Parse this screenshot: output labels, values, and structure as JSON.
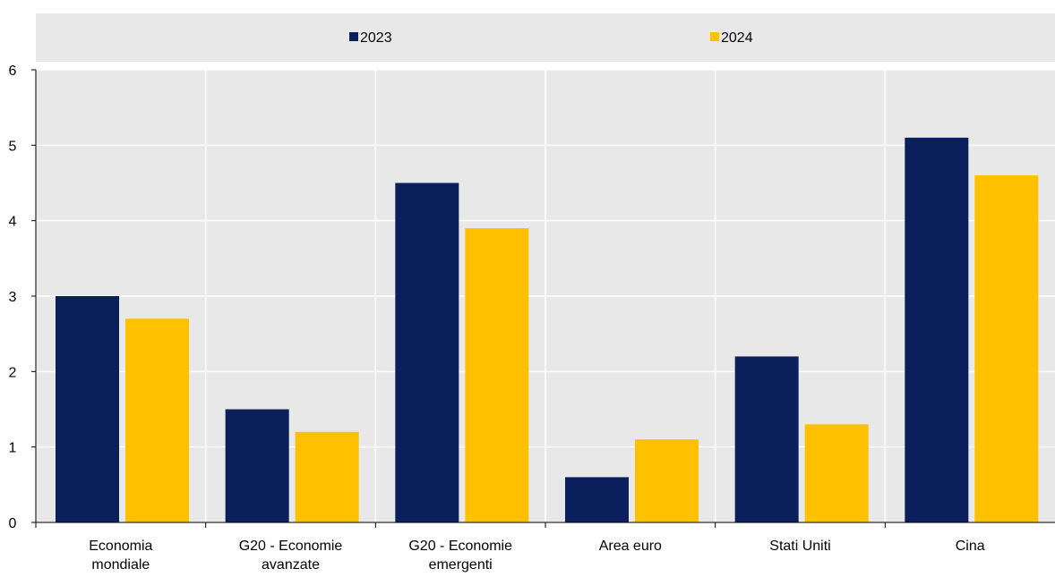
{
  "chart_data": {
    "type": "bar",
    "categories": [
      [
        "Economia",
        "mondiale"
      ],
      [
        "G20 - Economie",
        "avanzate"
      ],
      [
        "G20 - Economie",
        "emergenti"
      ],
      [
        "Area euro"
      ],
      [
        "Stati Uniti"
      ],
      [
        "Cina"
      ]
    ],
    "series": [
      {
        "name": "2023",
        "color": "#0b1f5c",
        "values": [
          3.0,
          1.5,
          4.5,
          0.6,
          2.2,
          5.1
        ]
      },
      {
        "name": "2024",
        "color": "#ffc000",
        "values": [
          2.7,
          1.2,
          3.9,
          1.1,
          1.3,
          4.6
        ]
      }
    ],
    "ylim": [
      0,
      6
    ],
    "yticks": [
      "0",
      "1",
      "2",
      "3",
      "4",
      "5",
      "6"
    ],
    "grid": true,
    "legend": "top-center",
    "plot_background": "#e8e8e8"
  }
}
